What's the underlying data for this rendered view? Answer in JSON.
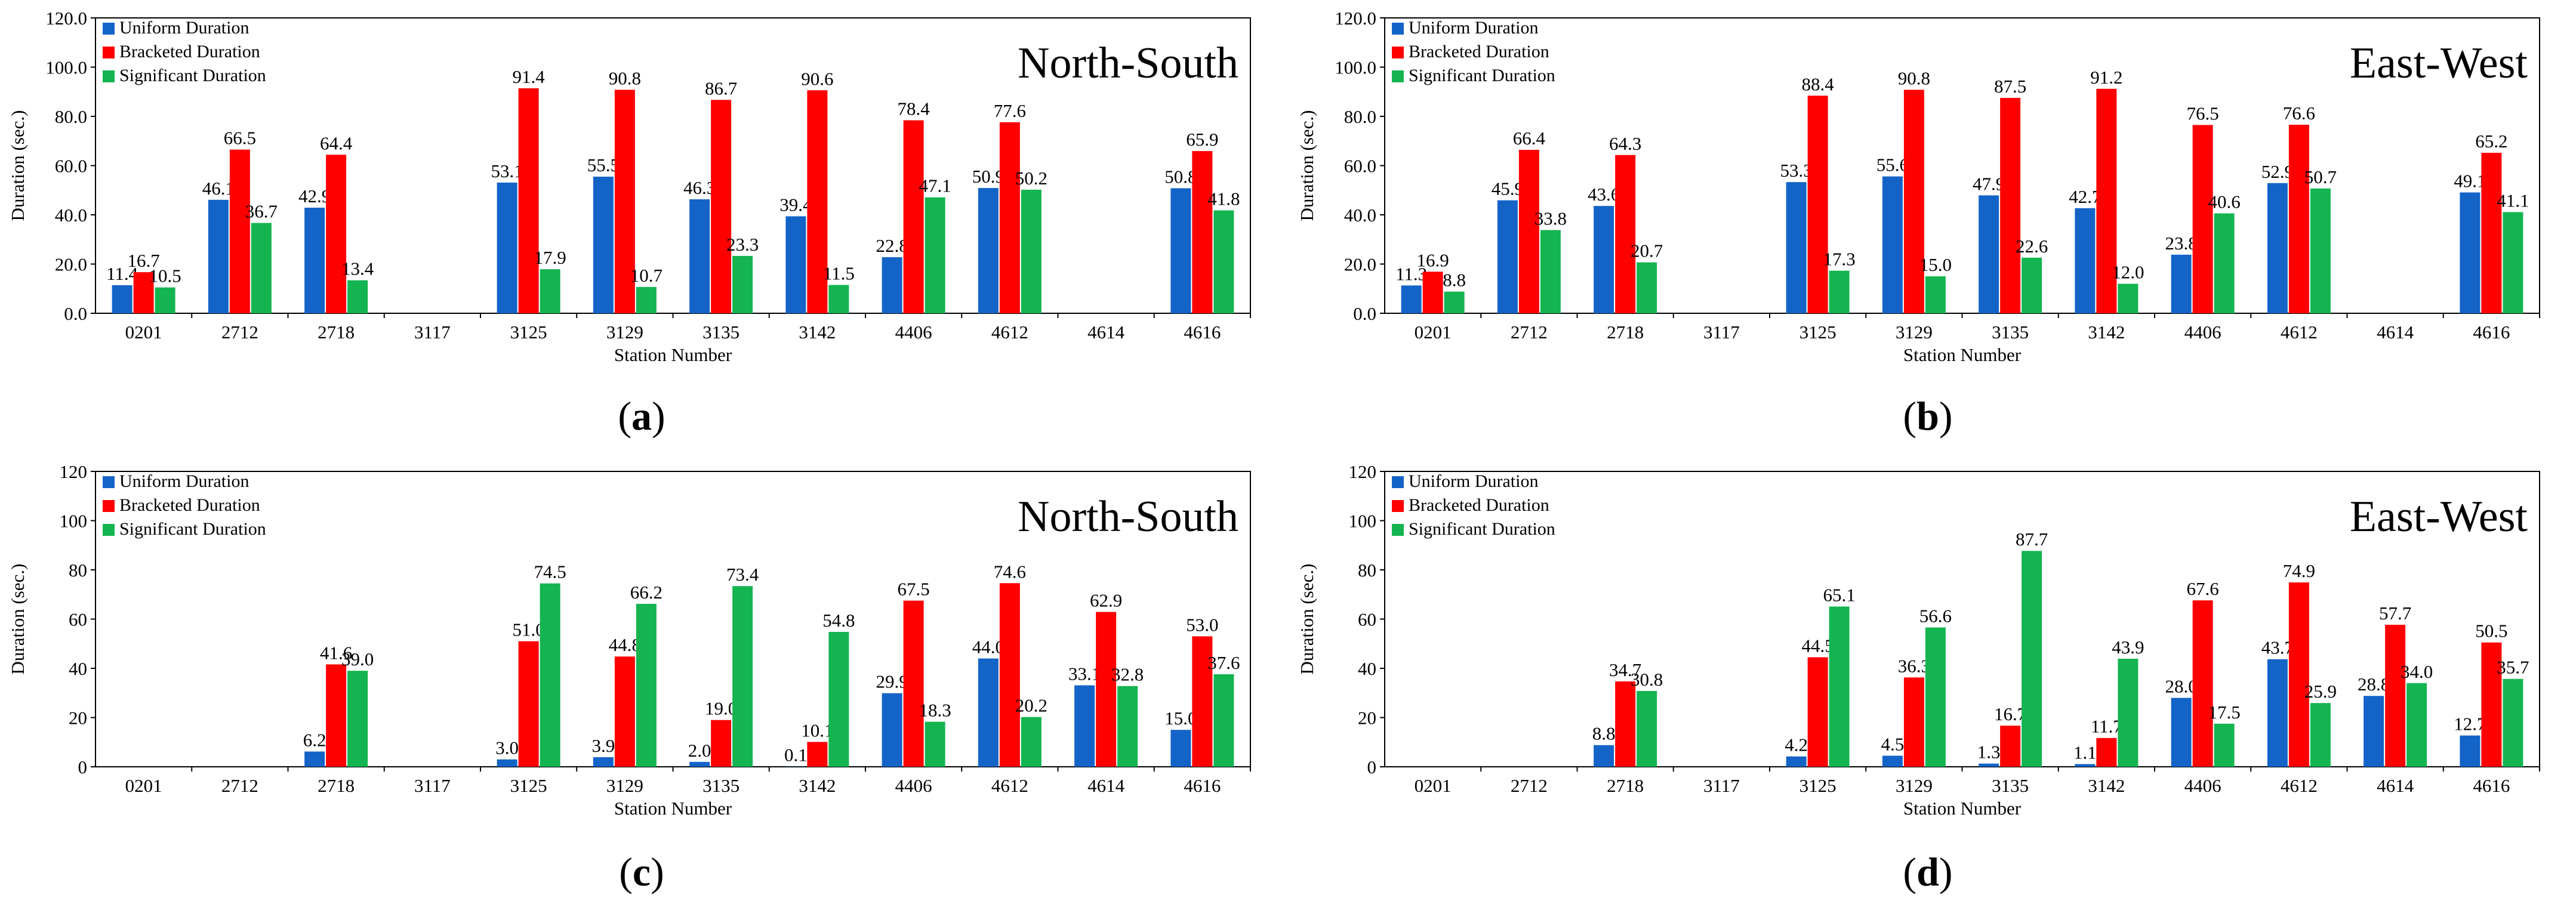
{
  "captions": [
    "a",
    "b",
    "c",
    "d"
  ],
  "colors": {
    "uniform": "#1464c8",
    "bracketed": "#ff0000",
    "significant": "#14b450"
  },
  "chart_data": [
    {
      "type": "bar",
      "annotation": "North-South",
      "xlabel": "Station Number",
      "ylabel": "Duration (sec.)",
      "ylim": [
        0,
        120
      ],
      "yticks": [
        "0.0",
        "20.0",
        "40.0",
        "60.0",
        "80.0",
        "100.0",
        "120.0"
      ],
      "legend_position": "top-left",
      "categories": [
        "0201",
        "2712",
        "2718",
        "3117",
        "3125",
        "3129",
        "3135",
        "3142",
        "4406",
        "4612",
        "4614",
        "4616"
      ],
      "series": [
        {
          "name": "Uniform Duration",
          "values": [
            11.4,
            46.1,
            42.9,
            null,
            53.1,
            55.5,
            46.3,
            39.4,
            22.8,
            50.9,
            null,
            50.8
          ],
          "labels": [
            "11.4",
            "46.1",
            "42.9",
            "",
            "53.1",
            "55.5",
            "46.3",
            "39.4",
            "22.8",
            "50.9",
            "",
            "50.8"
          ]
        },
        {
          "name": "Bracketed Duration",
          "values": [
            16.7,
            66.5,
            64.4,
            null,
            91.4,
            90.8,
            86.7,
            90.6,
            78.4,
            77.6,
            null,
            65.9
          ],
          "labels": [
            "16.7",
            "66.5",
            "64.4",
            "",
            "91.4",
            "90.8",
            "86.7",
            "90.6",
            "78.4",
            "77.6",
            "",
            "65.9"
          ]
        },
        {
          "name": "Significant Duration",
          "values": [
            10.5,
            36.7,
            13.4,
            null,
            17.9,
            10.7,
            23.3,
            11.5,
            47.1,
            50.2,
            null,
            41.8
          ],
          "labels": [
            "10.5",
            "36.7",
            "13.4",
            "",
            "17.9",
            "10.7",
            "23.3",
            "11.5",
            "47.1",
            "50.2",
            "",
            "41.8"
          ]
        }
      ]
    },
    {
      "type": "bar",
      "annotation": "East-West",
      "xlabel": "Station Number",
      "ylabel": "Duration (sec.)",
      "ylim": [
        0,
        120
      ],
      "yticks": [
        "0.0",
        "20.0",
        "40.0",
        "60.0",
        "80.0",
        "100.0",
        "120.0"
      ],
      "legend_position": "top-left",
      "categories": [
        "0201",
        "2712",
        "2718",
        "3117",
        "3125",
        "3129",
        "3135",
        "3142",
        "4406",
        "4612",
        "4614",
        "4616"
      ],
      "series": [
        {
          "name": "Uniform Duration",
          "values": [
            11.3,
            45.9,
            43.6,
            null,
            53.3,
            55.6,
            47.9,
            42.7,
            23.8,
            52.9,
            null,
            49.1
          ],
          "labels": [
            "11.3",
            "45.9",
            "43.6",
            "",
            "53.3",
            "55.6",
            "47.9",
            "42.7",
            "23.8",
            "52.9",
            "",
            "49.1"
          ]
        },
        {
          "name": "Bracketed Duration",
          "values": [
            16.9,
            66.4,
            64.3,
            null,
            88.4,
            90.8,
            87.5,
            91.2,
            76.5,
            76.6,
            null,
            65.2
          ],
          "labels": [
            "16.9",
            "66.4",
            "64.3",
            "",
            "88.4",
            "90.8",
            "87.5",
            "91.2",
            "76.5",
            "76.6",
            "",
            "65.2"
          ]
        },
        {
          "name": "Significant Duration",
          "values": [
            8.8,
            33.8,
            20.7,
            null,
            17.3,
            15.0,
            22.6,
            12.0,
            40.6,
            50.7,
            null,
            41.1
          ],
          "labels": [
            "8.8",
            "33.8",
            "20.7",
            "",
            "17.3",
            "15.0",
            "22.6",
            "12.0",
            "40.6",
            "50.7",
            "",
            "41.1"
          ]
        }
      ]
    },
    {
      "type": "bar",
      "annotation": "North-South",
      "xlabel": "Station Number",
      "ylabel": "Duration (sec.)",
      "ylim": [
        0,
        120
      ],
      "yticks": [
        "0",
        "20",
        "40",
        "60",
        "80",
        "100",
        "120"
      ],
      "legend_position": "top-left",
      "categories": [
        "0201",
        "2712",
        "2718",
        "3117",
        "3125",
        "3129",
        "3135",
        "3142",
        "4406",
        "4612",
        "4614",
        "4616"
      ],
      "series": [
        {
          "name": "Uniform Duration",
          "values": [
            null,
            null,
            6.2,
            null,
            3.0,
            3.9,
            2.0,
            0.1,
            29.9,
            44.0,
            33.1,
            15.0
          ],
          "labels": [
            "",
            "",
            "6.2",
            "",
            "3.0",
            "3.9",
            "2.0",
            "0.1",
            "29.9",
            "44.0",
            "33.1",
            "15.0"
          ]
        },
        {
          "name": "Bracketed Duration",
          "values": [
            null,
            null,
            41.6,
            null,
            51.0,
            44.8,
            19.0,
            10.1,
            67.5,
            74.6,
            62.9,
            53.0
          ],
          "labels": [
            "",
            "",
            "41.6",
            "",
            "51.0",
            "44.8",
            "19.0",
            "10.1",
            "67.5",
            "74.6",
            "62.9",
            "53.0"
          ]
        },
        {
          "name": "Significant Duration",
          "values": [
            null,
            null,
            39.0,
            null,
            74.5,
            66.2,
            73.4,
            54.8,
            18.3,
            20.2,
            32.8,
            37.6
          ],
          "labels": [
            "",
            "",
            "39.0",
            "",
            "74.5",
            "66.2",
            "73.4",
            "54.8",
            "18.3",
            "20.2",
            "32.8",
            "37.6"
          ]
        }
      ]
    },
    {
      "type": "bar",
      "annotation": "East-West",
      "xlabel": "Station Number",
      "ylabel": "Duration (sec.)",
      "ylim": [
        0,
        120
      ],
      "yticks": [
        "0",
        "20",
        "40",
        "60",
        "80",
        "100",
        "120"
      ],
      "legend_position": "top-left",
      "categories": [
        "0201",
        "2712",
        "2718",
        "3117",
        "3125",
        "3129",
        "3135",
        "3142",
        "4406",
        "4612",
        "4614",
        "4616"
      ],
      "series": [
        {
          "name": "Uniform Duration",
          "values": [
            null,
            null,
            8.8,
            null,
            4.2,
            4.5,
            1.3,
            1.1,
            28.0,
            43.7,
            28.8,
            12.7
          ],
          "labels": [
            "",
            "",
            "8.8",
            "",
            "4.2",
            "4.5",
            "1.3",
            "1.1",
            "28.0",
            "43.7",
            "28.8",
            "12.7"
          ]
        },
        {
          "name": "Bracketed Duration",
          "values": [
            null,
            null,
            34.7,
            null,
            44.5,
            36.3,
            16.7,
            11.7,
            67.6,
            74.9,
            57.7,
            50.5
          ],
          "labels": [
            "",
            "",
            "34.7",
            "",
            "44.5",
            "36.3",
            "16.7",
            "11.7",
            "67.6",
            "74.9",
            "57.7",
            "50.5"
          ]
        },
        {
          "name": "Significant Duration",
          "values": [
            null,
            null,
            30.8,
            null,
            65.1,
            56.6,
            87.7,
            43.9,
            17.5,
            25.9,
            34.0,
            35.7
          ],
          "labels": [
            "",
            "",
            "30.8",
            "",
            "65.1",
            "56.6",
            "87.7",
            "43.9",
            "17.5",
            "25.9",
            "34.0",
            "35.7"
          ]
        }
      ]
    }
  ]
}
